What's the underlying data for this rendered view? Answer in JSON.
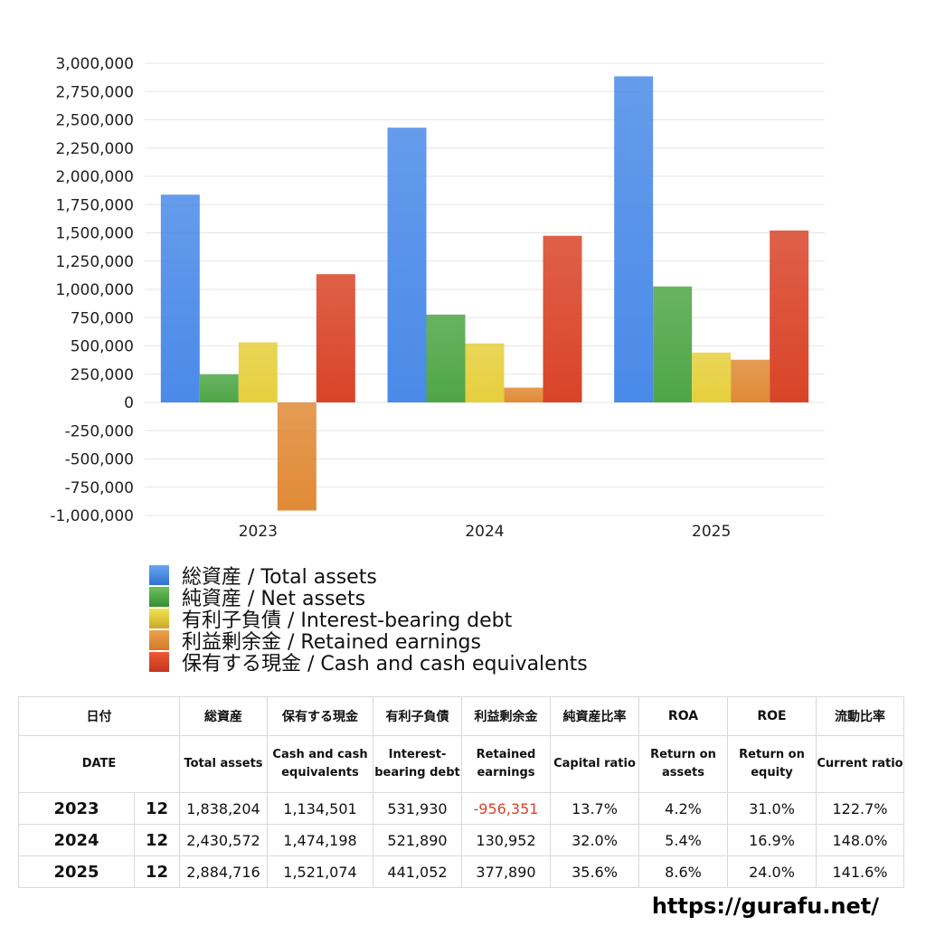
{
  "chart_data": {
    "type": "bar",
    "categories": [
      "2023",
      "2024",
      "2025"
    ],
    "series": [
      {
        "name": "総資産 / Total assets",
        "color": "#4a8ae8",
        "values": [
          1838204,
          2430572,
          2884716
        ]
      },
      {
        "name": "純資産 / Net assets",
        "color": "#4ea646",
        "values": [
          249000,
          777000,
          1026000
        ]
      },
      {
        "name": "有利子負債 / Interest-bearing debt",
        "color": "#e6cf3c",
        "values": [
          531930,
          521890,
          441052
        ]
      },
      {
        "name": "利益剰余金 / Retained earnings",
        "color": "#e08a36",
        "values": [
          -956351,
          130952,
          377890
        ]
      },
      {
        "name": "保有する現金 /  Cash and cash equivalents",
        "color": "#d94428",
        "values": [
          1134501,
          1474198,
          1521074
        ]
      }
    ],
    "yticks": [
      "3,000,000",
      "2,750,000",
      "2,500,000",
      "2,250,000",
      "2,000,000",
      "1,750,000",
      "1,500,000",
      "1,250,000",
      "1,000,000",
      "750,000",
      "500,000",
      "250,000",
      "0",
      "-250,000",
      "-500,000",
      "-750,000",
      "-1,000,000"
    ],
    "ylim": [
      -1000000,
      3000000
    ],
    "grid": true,
    "legend": "bottom"
  },
  "table": {
    "headers_ja": [
      "日付",
      "",
      "総資産",
      "保有する現金",
      "有利子負債",
      "利益剰余金",
      "純資産比率",
      "ROA",
      "ROE",
      "流動比率"
    ],
    "headers_en": [
      "DATE",
      "",
      "Total assets",
      "Cash and cash equivalents",
      "Interest-bearing debt",
      "Retained earnings",
      "Capital ratio",
      "Return on assets",
      "Return on equity",
      "Current ratio"
    ],
    "rows": [
      {
        "year": "2023",
        "month": "12",
        "total_assets": "1,838,204",
        "cash": "1,134,501",
        "debt": "531,930",
        "retained": "-956,351",
        "capital_ratio": "13.7%",
        "roa": "4.2%",
        "roe": "31.0%",
        "current_ratio": "122.7%"
      },
      {
        "year": "2024",
        "month": "12",
        "total_assets": "2,430,572",
        "cash": "1,474,198",
        "debt": "521,890",
        "retained": "130,952",
        "capital_ratio": "32.0%",
        "roa": "5.4%",
        "roe": "16.9%",
        "current_ratio": "148.0%"
      },
      {
        "year": "2025",
        "month": "12",
        "total_assets": "2,884,716",
        "cash": "1,521,074",
        "debt": "441,052",
        "retained": "377,890",
        "capital_ratio": "35.6%",
        "roa": "8.6%",
        "roe": "24.0%",
        "current_ratio": "141.6%"
      }
    ]
  },
  "site_url": "https://gurafu.net/"
}
